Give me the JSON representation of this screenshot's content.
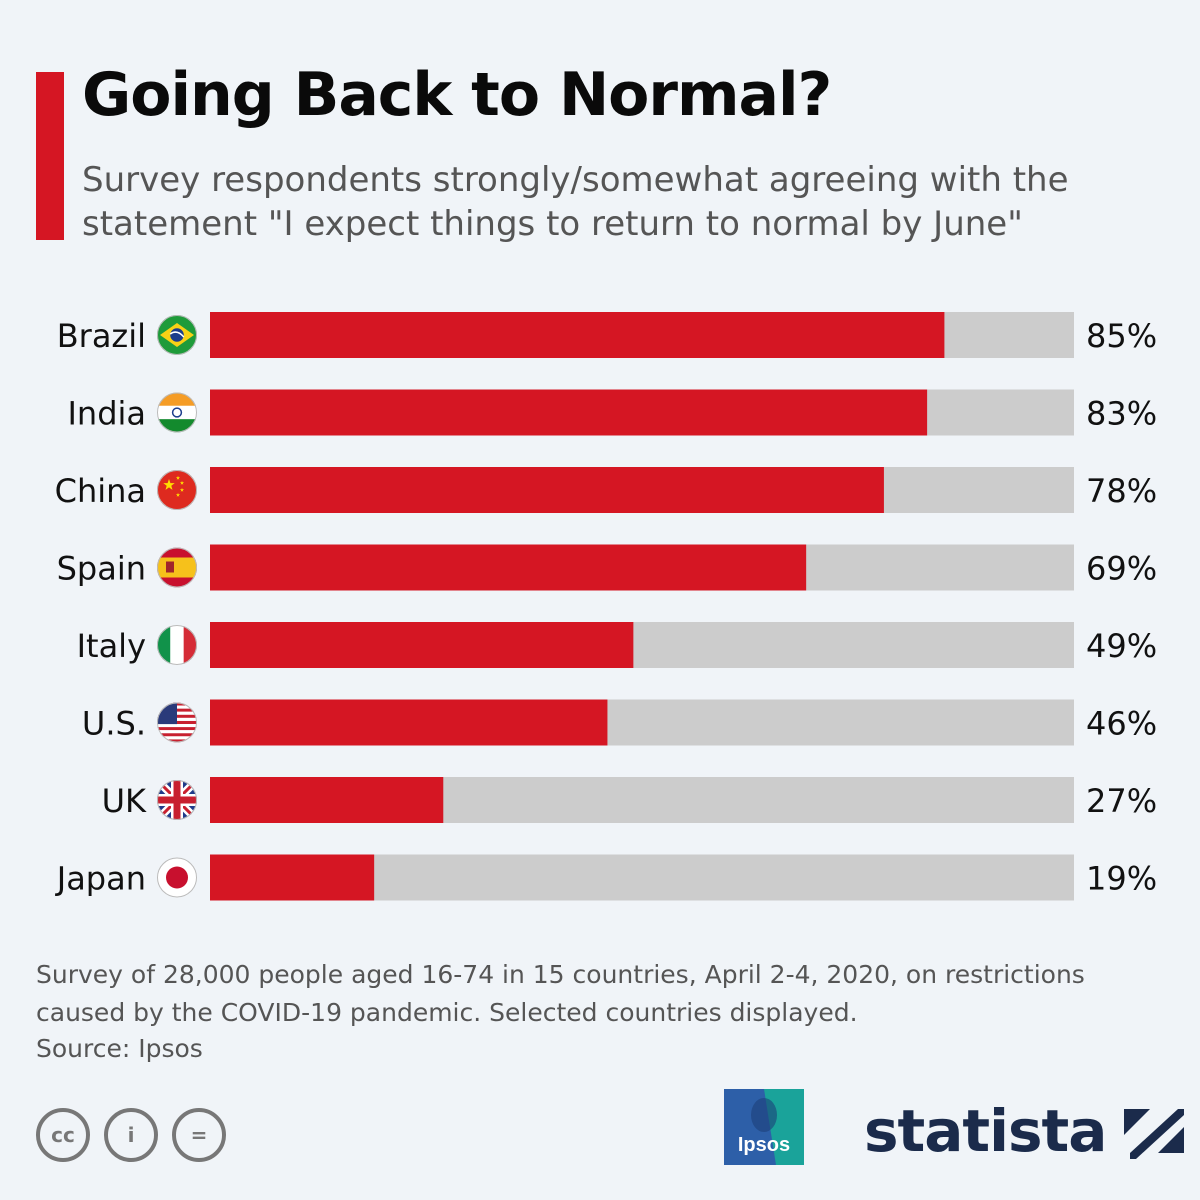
{
  "title": "Going Back to Normal?",
  "subtitle": "Survey respondents strongly/somewhat agreeing with the statement \"I expect things to return to normal by June\"",
  "note": "Survey of 28,000 people aged 16-74 in 15 countries, April 2-4, 2020, on restrictions caused by the COVID-19 pandemic. Selected countries displayed.",
  "source": "Source: Ipsos",
  "license_icons": [
    "cc-icon",
    "attribution-icon",
    "no-derivatives-icon"
  ],
  "license_labels": [
    "cc",
    "i",
    "="
  ],
  "ipsos_logo_text": "Ipsos",
  "statista_logo_text": "statista",
  "colors": {
    "accent": "#d51623",
    "track": "#cccccc",
    "background": "#f0f4f8",
    "brand": "#1b2b4b"
  },
  "chart_data": {
    "type": "bar",
    "orientation": "horizontal",
    "categories": [
      "Brazil",
      "India",
      "China",
      "Spain",
      "Italy",
      "U.S.",
      "UK",
      "Japan"
    ],
    "values": [
      85,
      83,
      78,
      69,
      49,
      46,
      27,
      19
    ],
    "value_labels": [
      "85%",
      "83%",
      "78%",
      "69%",
      "49%",
      "46%",
      "27%",
      "19%"
    ],
    "flags": [
      "brazil-flag-icon",
      "india-flag-icon",
      "china-flag-icon",
      "spain-flag-icon",
      "italy-flag-icon",
      "us-flag-icon",
      "uk-flag-icon",
      "japan-flag-icon"
    ],
    "xlim": [
      0,
      100
    ],
    "unit": "%",
    "grid": false,
    "legend": "none"
  }
}
